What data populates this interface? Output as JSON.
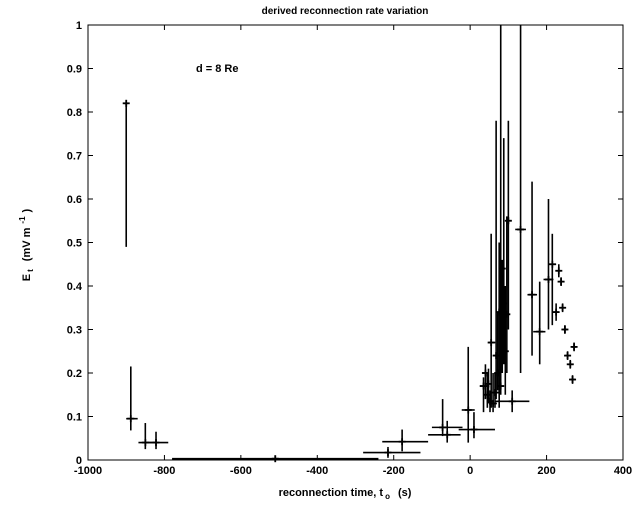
{
  "chart_data": {
    "type": "scatter",
    "title": "derived reconnection rate variation",
    "xlabel": "reconnection time, t₀ (s)",
    "xlabel_main": "reconnection time, t",
    "xlabel_sub": "o",
    "xlabel_unit": "(s)",
    "ylabel_main": "E",
    "ylabel_sub": "t",
    "ylabel_unit": "(mV m",
    "ylabel_exp": "-1",
    "ylabel_close": ")",
    "annotation": "d = 8 Re",
    "xlim": [
      -1000,
      400
    ],
    "ylim": [
      0,
      1
    ],
    "xticks": [
      -1000,
      -800,
      -600,
      -400,
      -200,
      0,
      200,
      400
    ],
    "xtick_labels": [
      "-1000",
      "-800",
      "-600",
      "-400",
      "-200",
      "0",
      "200",
      "400"
    ],
    "yticks": [
      0,
      0.1,
      0.2,
      0.3,
      0.4,
      0.5,
      0.6,
      0.7,
      0.8,
      0.9,
      1
    ],
    "ytick_labels": [
      "0",
      "0.1",
      "0.2",
      "0.3",
      "0.4",
      "0.5",
      "0.6",
      "0.7",
      "0.8",
      "0.9",
      "1"
    ],
    "grid": false,
    "series": [
      {
        "marker": "errorbar-cross",
        "color": "#000000",
        "points": [
          {
            "x": -900,
            "y": 0.82,
            "xmin": -905,
            "xmax": -895,
            "ymin": 0.49,
            "ymax": 0.82
          },
          {
            "x": -888,
            "y": 0.095,
            "xmin": -900,
            "xmax": -870,
            "ymin": 0.068,
            "ymax": 0.215
          },
          {
            "x": -850,
            "y": 0.04,
            "xmin": -868,
            "xmax": -825,
            "ymin": 0.025,
            "ymax": 0.085
          },
          {
            "x": -822,
            "y": 0.04,
            "xmin": -845,
            "xmax": -790,
            "ymin": 0.025,
            "ymax": 0.065
          },
          {
            "x": -510,
            "y": 0.003,
            "xmin": -780,
            "xmax": -240,
            "ymin": 0.0,
            "ymax": 0.01
          },
          {
            "x": -178,
            "y": 0.042,
            "xmin": -230,
            "xmax": -110,
            "ymin": 0.02,
            "ymax": 0.07
          },
          {
            "x": -215,
            "y": 0.017,
            "xmin": -280,
            "xmax": -130,
            "ymin": 0.005,
            "ymax": 0.03
          },
          {
            "x": -72,
            "y": 0.075,
            "xmin": -100,
            "xmax": -20,
            "ymin": 0.055,
            "ymax": 0.14
          },
          {
            "x": -60,
            "y": 0.058,
            "xmin": -110,
            "xmax": -25,
            "ymin": 0.04,
            "ymax": 0.09
          },
          {
            "x": -5,
            "y": 0.115,
            "xmin": -22,
            "xmax": 12,
            "ymin": 0.04,
            "ymax": 0.26
          },
          {
            "x": 10,
            "y": 0.07,
            "xmin": -30,
            "xmax": 65,
            "ymin": 0.05,
            "ymax": 0.11
          },
          {
            "x": 35,
            "y": 0.17,
            "xmin": 25,
            "xmax": 45,
            "ymin": 0.11,
            "ymax": 0.19
          },
          {
            "x": 40,
            "y": 0.2,
            "xmin": 32,
            "xmax": 48,
            "ymin": 0.14,
            "ymax": 0.22
          },
          {
            "x": 45,
            "y": 0.15,
            "xmin": 38,
            "xmax": 55,
            "ymin": 0.12,
            "ymax": 0.2
          },
          {
            "x": 48,
            "y": 0.175,
            "xmin": 40,
            "xmax": 56,
            "ymin": 0.13,
            "ymax": 0.21
          },
          {
            "x": 52,
            "y": 0.135,
            "xmin": 44,
            "xmax": 62,
            "ymin": 0.11,
            "ymax": 0.16
          },
          {
            "x": 55,
            "y": 0.27,
            "xmin": 48,
            "xmax": 66,
            "ymin": 0.12,
            "ymax": 0.52
          },
          {
            "x": 60,
            "y": 0.13,
            "xmin": 52,
            "xmax": 70,
            "ymin": 0.11,
            "ymax": 0.2
          },
          {
            "x": 65,
            "y": 0.155,
            "xmin": 58,
            "xmax": 74,
            "ymin": 0.12,
            "ymax": 0.2
          },
          {
            "x": 68,
            "y": 0.24,
            "xmin": 60,
            "xmax": 78,
            "ymin": 0.14,
            "ymax": 0.78
          },
          {
            "x": 72,
            "y": 0.2,
            "xmin": 64,
            "xmax": 80,
            "ymin": 0.16,
            "ymax": 0.34
          },
          {
            "x": 76,
            "y": 0.34,
            "xmin": 68,
            "xmax": 86,
            "ymin": 0.12,
            "ymax": 0.5
          },
          {
            "x": 80,
            "y": 0.17,
            "xmin": 72,
            "xmax": 88,
            "ymin": 0.15,
            "ymax": 1.0
          },
          {
            "x": 84,
            "y": 0.44,
            "xmin": 77,
            "xmax": 92,
            "ymin": 0.2,
            "ymax": 0.46
          },
          {
            "x": 88,
            "y": 0.36,
            "xmin": 80,
            "xmax": 96,
            "ymin": 0.22,
            "ymax": 0.74
          },
          {
            "x": 92,
            "y": 0.25,
            "xmin": 84,
            "xmax": 100,
            "ymin": 0.15,
            "ymax": 0.4
          },
          {
            "x": 96,
            "y": 0.335,
            "xmin": 88,
            "xmax": 104,
            "ymin": 0.2,
            "ymax": 0.56
          },
          {
            "x": 100,
            "y": 0.55,
            "xmin": 92,
            "xmax": 108,
            "ymin": 0.3,
            "ymax": 0.78
          },
          {
            "x": 110,
            "y": 0.135,
            "xmin": 65,
            "xmax": 155,
            "ymin": 0.11,
            "ymax": 0.16
          },
          {
            "x": 132,
            "y": 0.53,
            "xmin": 118,
            "xmax": 146,
            "ymin": 0.2,
            "ymax": 1.0
          },
          {
            "x": 162,
            "y": 0.38,
            "xmin": 150,
            "xmax": 175,
            "ymin": 0.24,
            "ymax": 0.64
          },
          {
            "x": 182,
            "y": 0.295,
            "xmin": 165,
            "xmax": 197,
            "ymin": 0.22,
            "ymax": 0.41
          },
          {
            "x": 205,
            "y": 0.415,
            "xmin": 192,
            "xmax": 218,
            "ymin": 0.3,
            "ymax": 0.6
          },
          {
            "x": 215,
            "y": 0.45,
            "xmin": 205,
            "xmax": 225,
            "ymin": 0.31,
            "ymax": 0.52
          },
          {
            "x": 225,
            "y": 0.34,
            "xmin": 218,
            "xmax": 232,
            "ymin": 0.32,
            "ymax": 0.36
          },
          {
            "x": 232,
            "y": 0.435,
            "xmin": 226,
            "xmax": 238,
            "ymin": 0.42,
            "ymax": 0.45
          },
          {
            "x": 238,
            "y": 0.41,
            "xmin": 232,
            "xmax": 244,
            "ymin": 0.4,
            "ymax": 0.42
          },
          {
            "x": 242,
            "y": 0.35,
            "xmin": 236,
            "xmax": 248,
            "ymin": 0.34,
            "ymax": 0.36
          },
          {
            "x": 248,
            "y": 0.3,
            "xmin": 242,
            "xmax": 254,
            "ymin": 0.29,
            "ymax": 0.31
          },
          {
            "x": 255,
            "y": 0.24,
            "xmin": 249,
            "xmax": 261,
            "ymin": 0.23,
            "ymax": 0.25
          },
          {
            "x": 262,
            "y": 0.22,
            "xmin": 256,
            "xmax": 268,
            "ymin": 0.21,
            "ymax": 0.23
          },
          {
            "x": 268,
            "y": 0.185,
            "xmin": 262,
            "xmax": 274,
            "ymin": 0.175,
            "ymax": 0.195
          },
          {
            "x": 272,
            "y": 0.26,
            "xmin": 266,
            "xmax": 278,
            "ymin": 0.25,
            "ymax": 0.27
          }
        ]
      }
    ]
  }
}
